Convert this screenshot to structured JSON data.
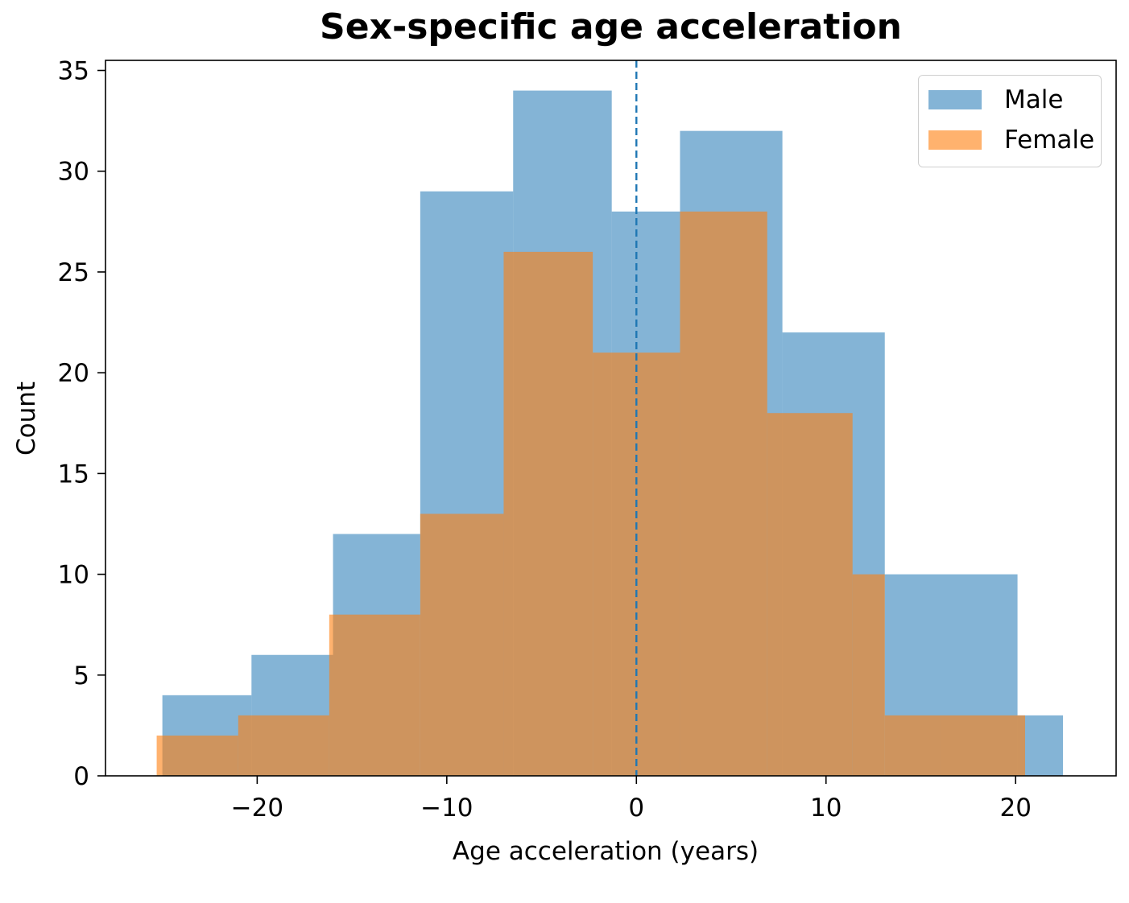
{
  "chart_data": {
    "type": "bar",
    "title": "Sex-specific age acceleration",
    "xlabel": "Age acceleration (years)",
    "ylabel": "Count",
    "xlim": [
      -28,
      25.3
    ],
    "ylim": [
      0,
      35.5
    ],
    "xticks": [
      -20,
      -10,
      0,
      10,
      20
    ],
    "xtick_labels": [
      "−20",
      "−10",
      "0",
      "10",
      "20"
    ],
    "yticks": [
      0,
      5,
      10,
      15,
      20,
      25,
      30,
      35
    ],
    "ytick_labels": [
      "0",
      "5",
      "10",
      "15",
      "20",
      "25",
      "30",
      "35"
    ],
    "grid": false,
    "legend_position": "top-right",
    "vline": {
      "x": 0,
      "style": "dashed",
      "color": "#1f77b4"
    },
    "series": [
      {
        "name": "Male",
        "color": "#1f77b4",
        "alpha": 0.55,
        "bin_edges": [
          -25,
          -20.3,
          -16.0,
          -11.4,
          -6.5,
          -1.3,
          2.3,
          7.7,
          13.1,
          20.1,
          22.5
        ],
        "counts": [
          4,
          6,
          12,
          29,
          34,
          28,
          32,
          22,
          10,
          3
        ]
      },
      {
        "name": "Female",
        "color": "#ff7f0e",
        "alpha": 0.6,
        "bin_edges": [
          -25.3,
          -21.0,
          -16.2,
          -11.4,
          -7.0,
          -2.3,
          2.3,
          6.9,
          11.4,
          13.1,
          16.0,
          20.5
        ],
        "counts": [
          2,
          3,
          8,
          13,
          26,
          21,
          28,
          18,
          10,
          3,
          3
        ],
        "bin_edges_note": ""
      }
    ]
  }
}
